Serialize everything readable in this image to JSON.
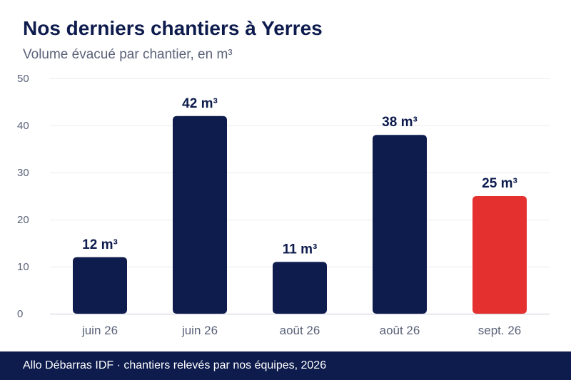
{
  "chart_data": {
    "type": "bar",
    "title": "Nos derniers chantiers à Yerres",
    "subtitle": "Volume évacué par chantier, en m³",
    "categories": [
      "juin 26",
      "juin 26",
      "août 26",
      "août 26",
      "sept. 26"
    ],
    "values": [
      12,
      42,
      11,
      38,
      25
    ],
    "value_labels": [
      "12 m³",
      "42 m³",
      "11 m³",
      "38 m³",
      "25 m³"
    ],
    "bar_colors": [
      "#0d1b4d",
      "#0d1b4d",
      "#0d1b4d",
      "#0d1b4d",
      "#e4312f"
    ],
    "yticks": [
      "0",
      "10",
      "20",
      "30",
      "40",
      "50"
    ],
    "ylim": [
      0,
      50
    ],
    "grid": true,
    "legend": "none"
  },
  "colors": {
    "primary": "#0d1b4d",
    "highlight": "#e4312f",
    "muted_text": "#5a6278"
  },
  "footer": {
    "text": "Allo Débarras IDF · chantiers relevés par nos équipes, 2026"
  }
}
